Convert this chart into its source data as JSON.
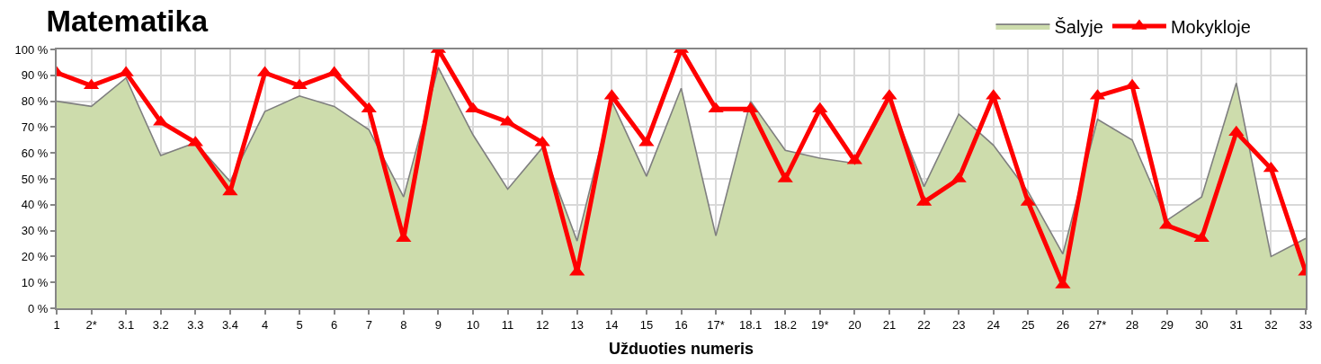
{
  "chart_data": {
    "type": "area",
    "title": "Matematika",
    "xlabel": "Užduoties numeris",
    "categories": [
      "1",
      "2*",
      "3.1",
      "3.2",
      "3.3",
      "3.4",
      "4",
      "5",
      "6",
      "7",
      "8",
      "9",
      "10",
      "11",
      "12",
      "13",
      "14",
      "15",
      "16",
      "17*",
      "18.1",
      "18.2",
      "19*",
      "20",
      "21",
      "22",
      "23",
      "24",
      "25",
      "26",
      "27*",
      "28",
      "29",
      "30",
      "31",
      "32",
      "33"
    ],
    "series": [
      {
        "name": "Šalyje",
        "color": "#cddcac",
        "values": [
          80,
          78,
          89,
          59,
          64,
          49,
          76,
          82,
          78,
          69,
          43,
          93,
          67,
          46,
          62,
          26,
          80,
          51,
          85,
          28,
          80,
          61,
          58,
          56,
          81,
          47,
          75,
          63,
          45,
          21,
          73,
          65,
          34,
          43,
          87,
          20,
          27
        ]
      },
      {
        "name": "Mokykloje",
        "type": "line",
        "color": "#ff0000",
        "marker": "triangle",
        "values": [
          91,
          86,
          91,
          72,
          64,
          45,
          91,
          86,
          91,
          77,
          27,
          100,
          77,
          72,
          64,
          14,
          82,
          64,
          100,
          77,
          77,
          50,
          77,
          57,
          82,
          41,
          50,
          82,
          41,
          9,
          82,
          86,
          32,
          27,
          68,
          54,
          14
        ]
      }
    ],
    "ylim": [
      0,
      100
    ],
    "yticks": [
      {
        "value": 0,
        "label": "0 %"
      },
      {
        "value": 10,
        "label": "10 %"
      },
      {
        "value": 20,
        "label": "20 %"
      },
      {
        "value": 30,
        "label": "30 %"
      },
      {
        "value": 40,
        "label": "40 %"
      },
      {
        "value": 50,
        "label": "50 %"
      },
      {
        "value": 60,
        "label": "60 %"
      },
      {
        "value": 70,
        "label": "70 %"
      },
      {
        "value": 80,
        "label": "80 %"
      },
      {
        "value": 90,
        "label": "90 %"
      },
      {
        "value": 100,
        "label": "100 %"
      }
    ],
    "grid": true,
    "legend": "top right"
  }
}
